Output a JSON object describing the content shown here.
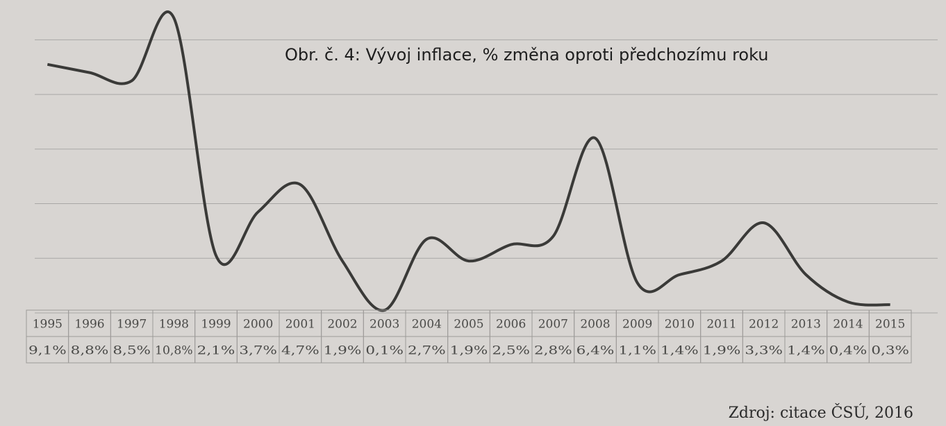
{
  "chart_data": {
    "type": "line",
    "title": "Obr. č. 4: Vývoj inflace, % změna oproti předchozímu roku",
    "source": "Zdroj: citace ČSÚ, 2016",
    "categories": [
      "1995",
      "1996",
      "1997",
      "1998",
      "1999",
      "2000",
      "2001",
      "2002",
      "2003",
      "2004",
      "2005",
      "2006",
      "2007",
      "2008",
      "2009",
      "2010",
      "2011",
      "2012",
      "2013",
      "2014",
      "2015"
    ],
    "series": [
      {
        "name": "Inflace",
        "color": "#3a3a38",
        "values": [
          9.1,
          8.8,
          8.5,
          10.8,
          2.1,
          3.7,
          4.7,
          1.9,
          0.1,
          2.7,
          1.9,
          2.5,
          2.8,
          6.4,
          1.1,
          1.4,
          1.9,
          3.3,
          1.4,
          0.4,
          0.3
        ],
        "value_labels": [
          "9,1%",
          "8,8%",
          "8,5%",
          "10,8%",
          "2,1%",
          "3,7%",
          "4,7%",
          "1,9%",
          "0,1%",
          "2,7%",
          "1,9%",
          "2,5%",
          "2,8%",
          "6,4%",
          "1,1%",
          "1,4%",
          "1,9%",
          "3,3%",
          "1,4%",
          "0,4%",
          "0,3%"
        ]
      }
    ],
    "ylim": [
      0,
      11
    ],
    "yticks": [
      0,
      2,
      4,
      6,
      8,
      10
    ],
    "grid": true
  }
}
